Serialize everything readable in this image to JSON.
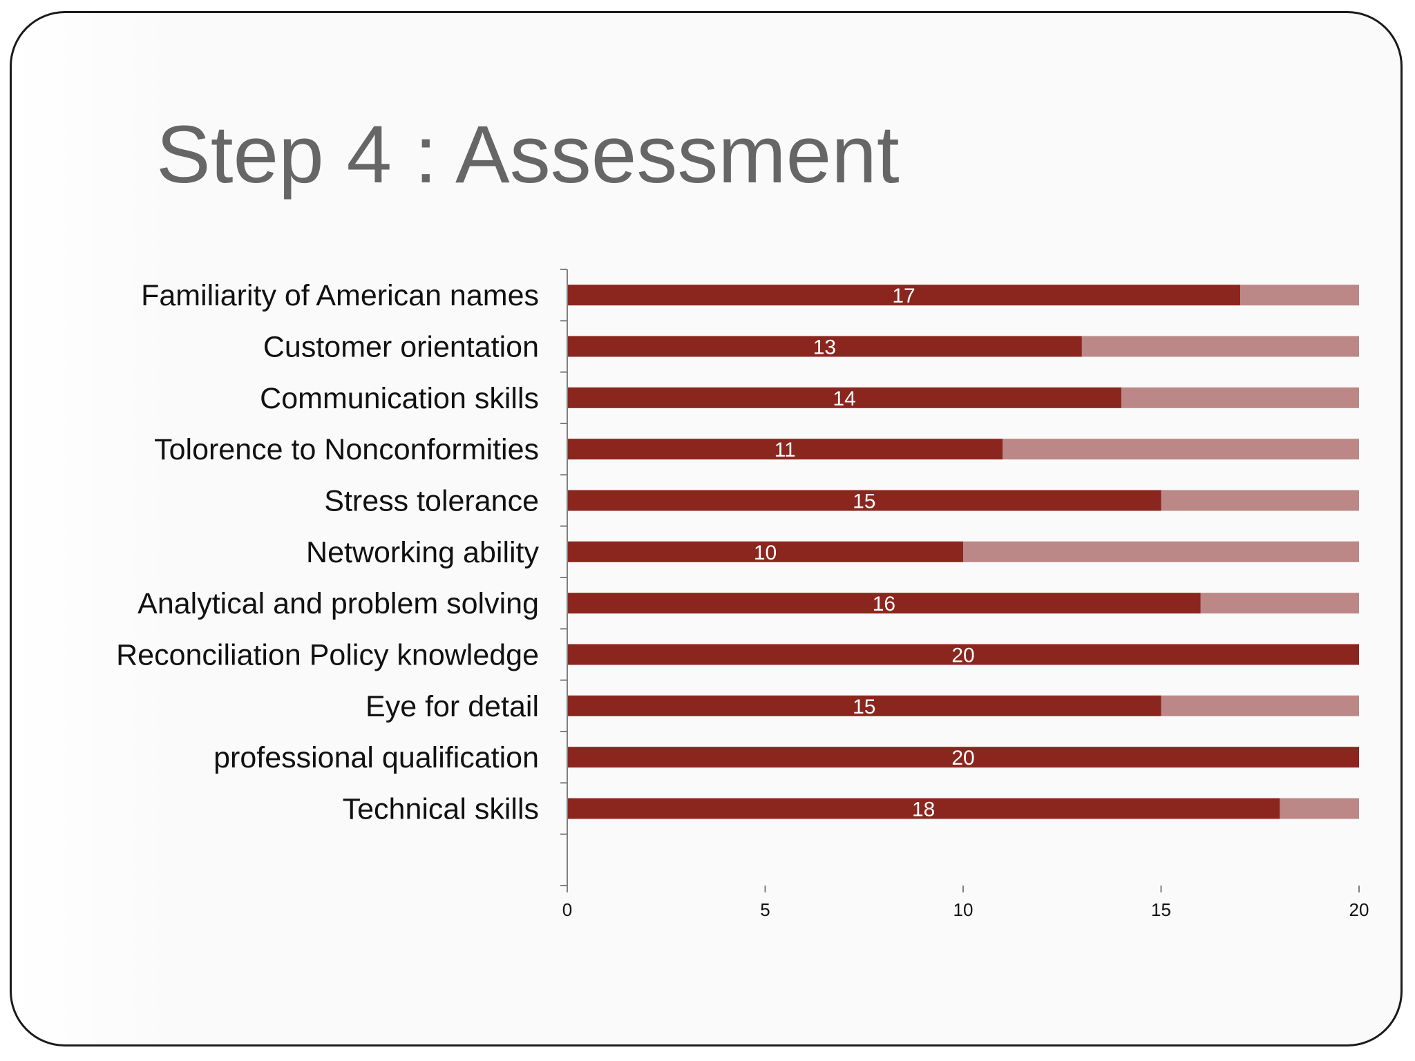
{
  "slide": {
    "title": "Step 4 : Assessment"
  },
  "chart_data": {
    "type": "bar",
    "orientation": "horizontal",
    "stacked": true,
    "categories": [
      "Familiarity of American names",
      "Customer orientation",
      "Communication skills",
      "Tolorence to Nonconformities",
      "Stress tolerance",
      "Networking ability",
      "Analytical and problem solving ",
      "Reconciliation Policy knowledge",
      "Eye for detail",
      "professional qualification",
      "Technical skills"
    ],
    "series": [
      {
        "values": [
          17,
          13,
          14,
          11,
          15,
          10,
          16,
          20,
          15,
          20,
          18
        ],
        "color": "#8b261e",
        "data_labels": true
      },
      {
        "values": [
          3,
          7,
          6,
          9,
          5,
          10,
          4,
          0,
          5,
          0,
          2
        ],
        "color": "#bb8887",
        "data_labels": false
      }
    ],
    "x_ticks": [
      "0",
      "5",
      "10",
      "15",
      "20"
    ],
    "xlim": [
      0,
      20
    ],
    "grid": false,
    "legend": "none"
  }
}
